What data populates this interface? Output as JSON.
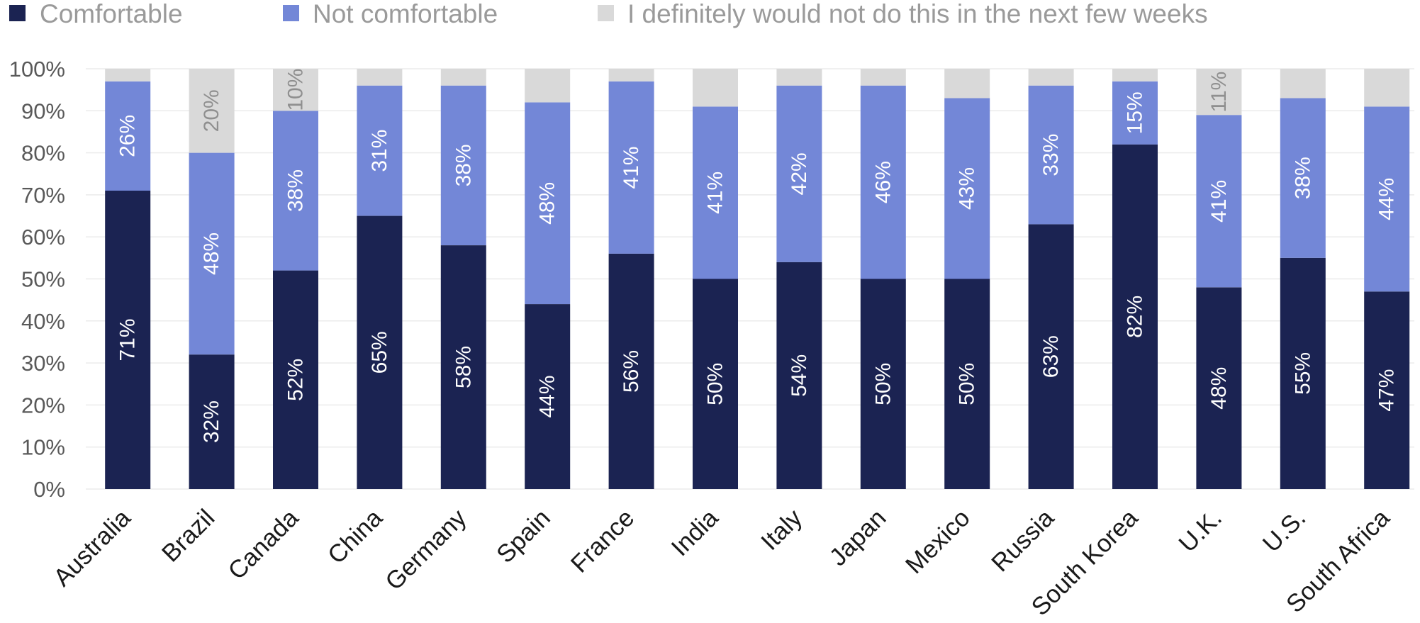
{
  "chart_data": {
    "type": "bar",
    "stacked": true,
    "categories": [
      "Australia",
      "Brazil",
      "Canada",
      "China",
      "Germany",
      "Spain",
      "France",
      "India",
      "Italy",
      "Japan",
      "Mexico",
      "Russia",
      "South Korea",
      "U.K.",
      "U.S.",
      "South Africa"
    ],
    "series": [
      {
        "name": "Comfortable",
        "color": "#1b2352",
        "label_color": "#ffffff",
        "values": [
          71,
          32,
          52,
          65,
          58,
          44,
          56,
          50,
          54,
          50,
          50,
          63,
          82,
          48,
          55,
          47
        ],
        "labels": [
          "71%",
          "32%",
          "52%",
          "65%",
          "58%",
          "44%",
          "56%",
          "50%",
          "54%",
          "50%",
          "50%",
          "63%",
          "82%",
          "48%",
          "55%",
          "47%"
        ]
      },
      {
        "name": "Not comfortable",
        "color": "#7387d7",
        "label_color": "#ffffff",
        "values": [
          26,
          48,
          38,
          31,
          38,
          48,
          41,
          41,
          42,
          46,
          43,
          33,
          15,
          41,
          38,
          44
        ],
        "labels": [
          "26%",
          "48%",
          "38%",
          "31%",
          "38%",
          "48%",
          "41%",
          "41%",
          "42%",
          "46%",
          "43%",
          "33%",
          "15%",
          "41%",
          "38%",
          "44%"
        ]
      },
      {
        "name": "I definitely would not do this in the next few weeks",
        "color": "#d9d9d9",
        "label_color": "#8f8f8f",
        "values": [
          3,
          20,
          10,
          4,
          4,
          8,
          3,
          9,
          4,
          4,
          7,
          4,
          3,
          11,
          7,
          9
        ],
        "labels": [
          null,
          "20%",
          "10%",
          null,
          null,
          null,
          null,
          null,
          null,
          null,
          null,
          null,
          null,
          "11%",
          null,
          null
        ]
      }
    ],
    "ylim": [
      0,
      100
    ],
    "ytick_values": [
      0,
      10,
      20,
      30,
      40,
      50,
      60,
      70,
      80,
      90,
      100
    ],
    "ytick_labels": [
      "0%",
      "10%",
      "20%",
      "30%",
      "40%",
      "50%",
      "60%",
      "70%",
      "80%",
      "90%",
      "100%"
    ],
    "legend_position": "top-left",
    "grid": true
  },
  "colors": {
    "grid": "#ebebeb",
    "axis_text": "#595959",
    "legend_text": "#9a9a9a",
    "category_text": "#1a1a1a"
  }
}
